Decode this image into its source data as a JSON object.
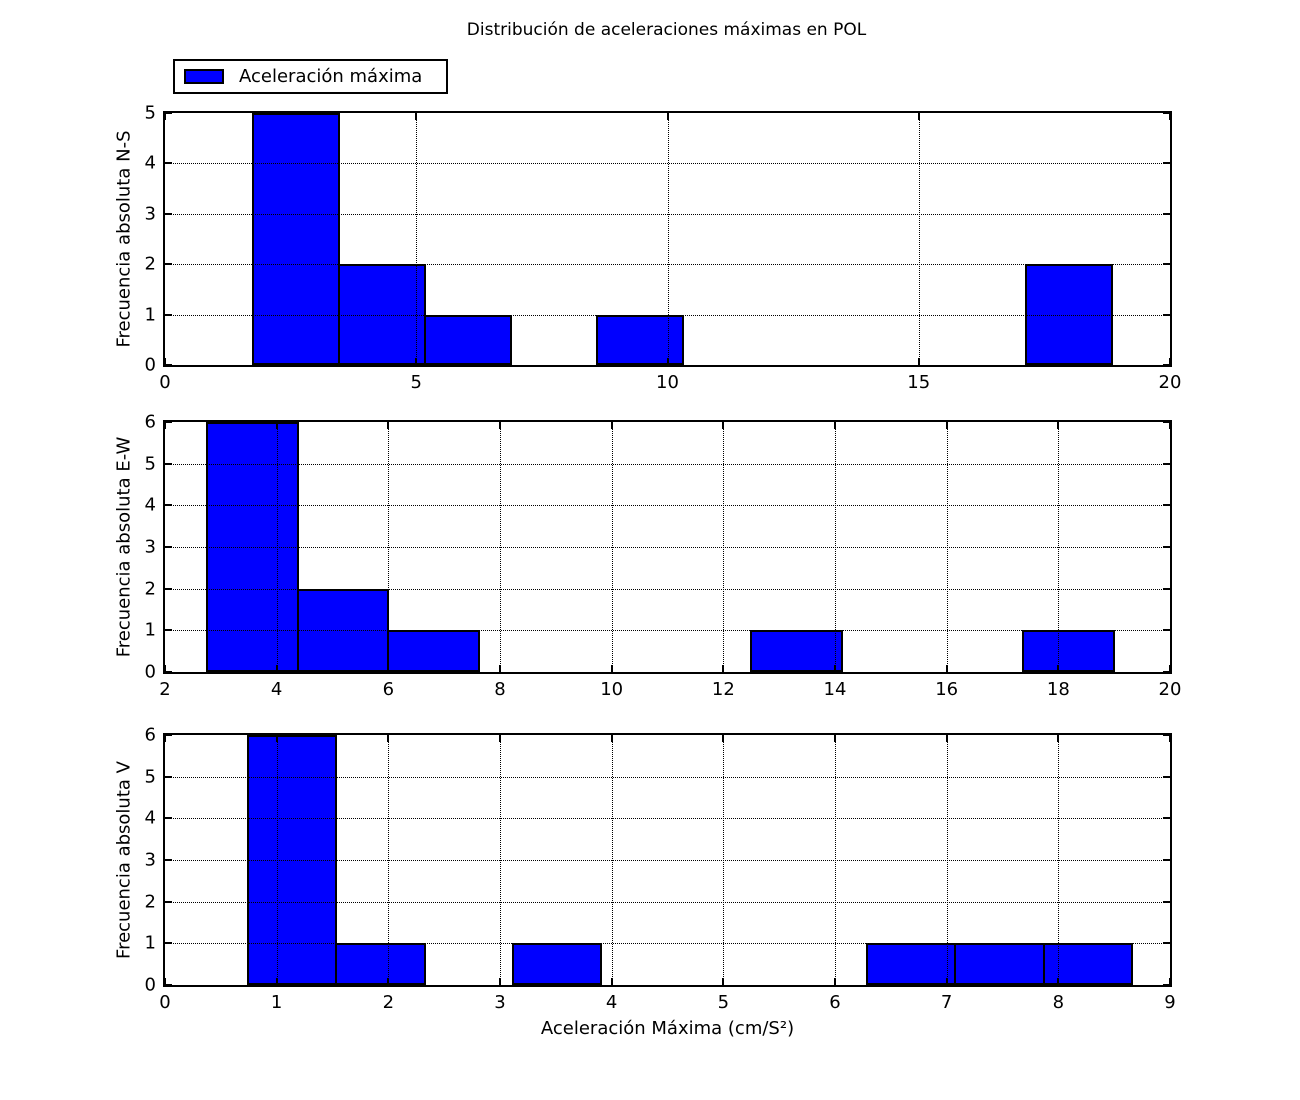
{
  "title": "Distribución de aceleraciones máximas en POL",
  "legend": {
    "label": "Aceleración máxima",
    "swatch_color": "#0000ff"
  },
  "xlabel": "Aceleración Máxima (cm/S²)",
  "colors": {
    "bar_fill": "#0000ff",
    "bar_edge": "#000000",
    "grid": "#000000",
    "spine": "#000000",
    "background": "#ffffff"
  },
  "chart_data": [
    {
      "type": "bar",
      "subtype": "histogram",
      "series_label": "Aceleración máxima",
      "ylabel": "Frecuencia absoluta N-S",
      "xlabel": "",
      "xlim": [
        0,
        20
      ],
      "ylim": [
        0,
        5
      ],
      "xticks": [
        0,
        5,
        10,
        15,
        20
      ],
      "yticks": [
        0,
        1,
        2,
        3,
        4,
        5
      ],
      "bin_start": 1.75,
      "bin_width": 1.71,
      "bin_edges": [
        1.75,
        3.46,
        5.17,
        6.88,
        8.59,
        10.3,
        12.01,
        13.72,
        15.43,
        17.14,
        18.85
      ],
      "counts": [
        5,
        2,
        1,
        0,
        1,
        0,
        0,
        0,
        0,
        2
      ],
      "grid": "dotted",
      "legend_position": "upper-left-outside"
    },
    {
      "type": "bar",
      "subtype": "histogram",
      "series_label": "Aceleración máxima",
      "ylabel": "Frecuencia absoluta E-W",
      "xlabel": "",
      "xlim": [
        2,
        20
      ],
      "ylim": [
        0,
        6
      ],
      "xticks": [
        2,
        4,
        6,
        8,
        10,
        12,
        14,
        16,
        18,
        20
      ],
      "yticks": [
        0,
        1,
        2,
        3,
        4,
        5,
        6
      ],
      "bin_start": 2.75,
      "bin_width": 1.625,
      "bin_edges": [
        2.75,
        4.38,
        6.0,
        7.63,
        9.25,
        10.88,
        12.5,
        14.13,
        15.75,
        17.38,
        19.0
      ],
      "counts": [
        6,
        2,
        1,
        0,
        0,
        0,
        1,
        0,
        0,
        1
      ],
      "grid": "dotted",
      "legend_position": "none"
    },
    {
      "type": "bar",
      "subtype": "histogram",
      "series_label": "Aceleración máxima",
      "ylabel": "Frecuencia absoluta V",
      "xlabel": "Aceleración Máxima (cm/S²)",
      "xlim": [
        0,
        9
      ],
      "ylim": [
        0,
        6
      ],
      "xticks": [
        0,
        1,
        2,
        3,
        4,
        5,
        6,
        7,
        8,
        9
      ],
      "yticks": [
        0,
        1,
        2,
        3,
        4,
        5,
        6
      ],
      "bin_start": 0.74,
      "bin_width": 0.792,
      "bin_edges": [
        0.74,
        1.53,
        2.32,
        3.12,
        3.91,
        4.7,
        5.5,
        6.29,
        7.08,
        7.87,
        8.66
      ],
      "counts": [
        6,
        1,
        0,
        1,
        0,
        0,
        0,
        1,
        1,
        1
      ],
      "grid": "dotted",
      "legend_position": "none"
    }
  ]
}
